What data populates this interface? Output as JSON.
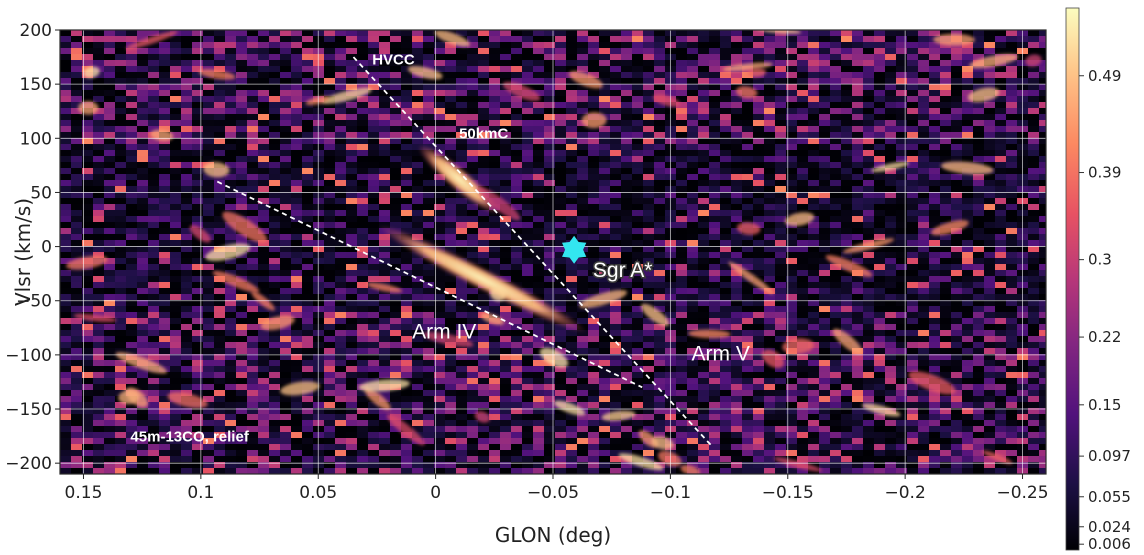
{
  "chart_data": {
    "type": "heatmap",
    "title": "",
    "xlabel": "GLON (deg)",
    "ylabel": "Vlsr (km/s)",
    "xlim": [
      0.16,
      -0.26
    ],
    "ylim": [
      -210,
      200
    ],
    "x_ticks": [
      0.15,
      0.1,
      0.05,
      0,
      -0.05,
      -0.1,
      -0.15,
      -0.2,
      -0.25
    ],
    "x_tick_labels": [
      "0.15",
      "0.1",
      "0.05",
      "0",
      "−0.05",
      "−0.1",
      "−0.15",
      "−0.2",
      "−0.25"
    ],
    "y_ticks": [
      200,
      150,
      100,
      50,
      0,
      -50,
      -100,
      -150,
      -200
    ],
    "y_tick_labels": [
      "200",
      "150",
      "100",
      "50",
      "0",
      "−50",
      "−100",
      "−150",
      "−200"
    ],
    "grid": true,
    "colormap": "magma",
    "colorbar": {
      "ticks": [
        0.49,
        0.39,
        0.3,
        0.22,
        0.15,
        0.097,
        0.055,
        0.024,
        0.006
      ],
      "tick_labels": [
        "0.49",
        "0.39",
        "0.3",
        "0.22",
        "0.15",
        "0.097",
        "0.055",
        "0.024",
        "0.006"
      ],
      "range": [
        0.0,
        0.56
      ]
    },
    "features": [
      {
        "label": "Arm IV",
        "glon": -0.02,
        "vlsr": -30,
        "length_deg": 0.1,
        "angle": 27,
        "intensity": 0.55
      },
      {
        "label": "50kmC",
        "glon": -0.01,
        "vlsr": 62,
        "length_deg": 0.045,
        "angle": 40,
        "intensity": 0.56
      }
    ],
    "lines": [
      {
        "from": [
          0.035,
          175
        ],
        "to": [
          -0.118,
          -185
        ]
      },
      {
        "from": [
          0.093,
          60
        ],
        "to": [
          -0.088,
          -130
        ]
      }
    ],
    "annotations": [
      {
        "text": "HVCC",
        "glon": 0.027,
        "vlsr": 168
      },
      {
        "text": "50kmC",
        "glon": -0.01,
        "vlsr": 100
      },
      {
        "text": "Sgr A*",
        "glon": -0.067,
        "vlsr": -28
      },
      {
        "text": "Arm IV",
        "glon": 0.01,
        "vlsr": -85
      },
      {
        "text": "Arm V",
        "glon": -0.109,
        "vlsr": -105
      },
      {
        "text": "45m-13CO, relief",
        "glon": 0.13,
        "vlsr": -180
      }
    ],
    "marker": {
      "label": "Sgr A*",
      "glon": -0.059,
      "vlsr": -3,
      "color": "#33e6f0",
      "shape": "star"
    }
  }
}
